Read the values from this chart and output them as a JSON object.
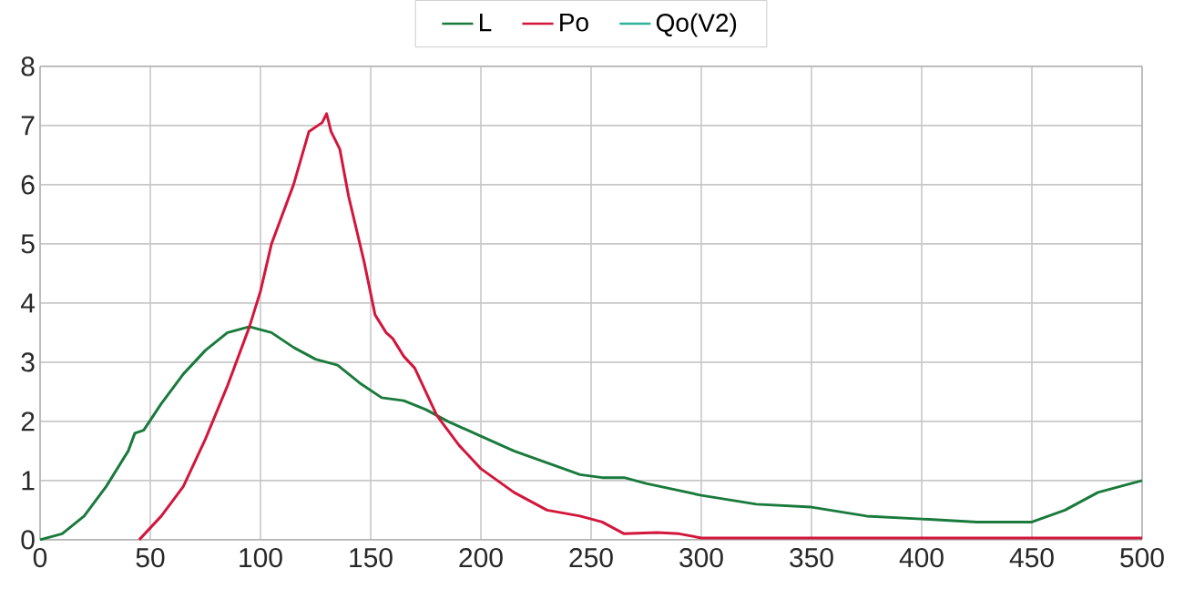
{
  "chart_data": {
    "type": "line",
    "xlim": [
      0,
      500
    ],
    "ylim": [
      0,
      8
    ],
    "xticks": [
      0,
      50,
      100,
      150,
      200,
      250,
      300,
      350,
      400,
      450,
      500
    ],
    "yticks": [
      0,
      1,
      2,
      3,
      4,
      5,
      6,
      7,
      8
    ],
    "grid": true,
    "legend": "top",
    "marker": "none",
    "line_style": "solid",
    "series": [
      {
        "name": "L",
        "color": "#1a7a3c",
        "x": [
          0,
          10,
          20,
          30,
          40,
          43,
          47,
          55,
          65,
          75,
          85,
          95,
          105,
          115,
          125,
          135,
          145,
          155,
          165,
          175,
          185,
          200,
          215,
          230,
          245,
          255,
          265,
          275,
          300,
          325,
          350,
          375,
          400,
          425,
          450,
          465,
          480,
          490,
          500
        ],
        "values": [
          0,
          0.1,
          0.4,
          0.9,
          1.5,
          1.8,
          1.85,
          2.3,
          2.8,
          3.2,
          3.5,
          3.6,
          3.5,
          3.25,
          3.05,
          2.95,
          2.65,
          2.4,
          2.35,
          2.2,
          2.0,
          1.75,
          1.5,
          1.3,
          1.1,
          1.05,
          1.05,
          0.95,
          0.75,
          0.6,
          0.55,
          0.4,
          0.35,
          0.3,
          0.3,
          0.5,
          0.8,
          0.9,
          1.0
        ]
      },
      {
        "name": "Po",
        "color": "#d2163c",
        "x": [
          45,
          55,
          65,
          75,
          85,
          95,
          100,
          105,
          115,
          122,
          128,
          130,
          132,
          136,
          140,
          147,
          152,
          157,
          160,
          165,
          170,
          180,
          190,
          200,
          215,
          230,
          245,
          255,
          265,
          280,
          290,
          300,
          400,
          500
        ],
        "values": [
          0,
          0.4,
          0.9,
          1.7,
          2.6,
          3.6,
          4.2,
          5.0,
          6.0,
          6.9,
          7.05,
          7.2,
          6.9,
          6.6,
          5.8,
          4.7,
          3.8,
          3.5,
          3.4,
          3.1,
          2.9,
          2.1,
          1.6,
          1.2,
          0.8,
          0.5,
          0.4,
          0.3,
          0.1,
          0.12,
          0.1,
          0.03,
          0.03,
          0.03
        ]
      },
      {
        "name": "Qo(V2)",
        "color": "#2db39a"
      }
    ]
  }
}
